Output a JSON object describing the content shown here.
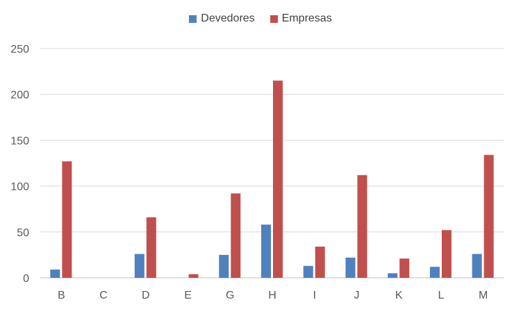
{
  "chart_data": {
    "type": "bar",
    "categories": [
      "B",
      "C",
      "D",
      "E",
      "G",
      "H",
      "I",
      "J",
      "K",
      "L",
      "M"
    ],
    "series": [
      {
        "name": "Devedores",
        "color": "#4F81BD",
        "values": [
          9,
          0,
          26,
          0,
          25,
          58,
          13,
          22,
          5,
          12,
          26
        ]
      },
      {
        "name": "Empresas",
        "color": "#C0504D",
        "values": [
          127,
          0,
          66,
          4,
          92,
          215,
          34,
          112,
          21,
          52,
          134
        ]
      }
    ],
    "y_ticks": [
      "0",
      "50",
      "100",
      "150",
      "200",
      "250"
    ],
    "ylim": [
      0,
      250
    ],
    "grid": true,
    "legend_position": "top"
  }
}
